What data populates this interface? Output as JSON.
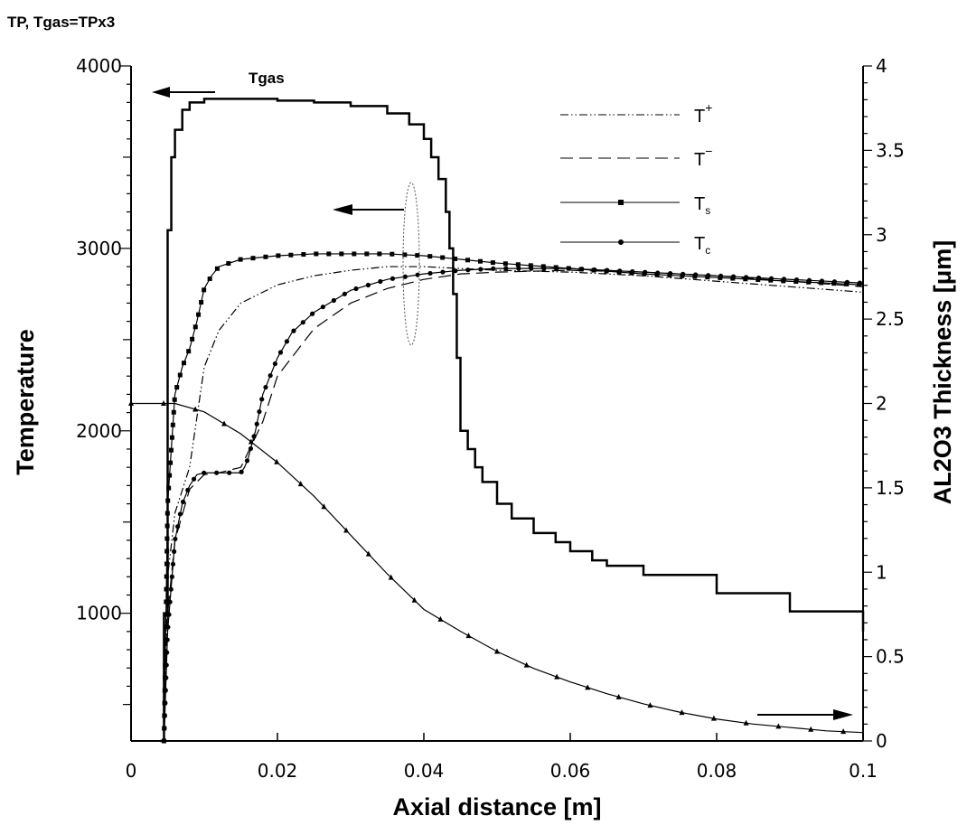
{
  "chart_data": {
    "type": "line",
    "title": "TP, Tgas=TPx3",
    "xlabel": "Axial distance [m]",
    "ylabel": "Temperature",
    "y2label": "AL2O3 Thickness [μm]",
    "xlim": [
      0,
      0.1
    ],
    "ylim": [
      300,
      4000
    ],
    "y2lim": [
      0,
      4
    ],
    "x_ticks": [
      "0",
      "0.02",
      "0.04",
      "0.06",
      "0.08",
      "0.1"
    ],
    "y_ticks": [
      "1000",
      "2000",
      "3000",
      "4000"
    ],
    "y2_ticks": [
      "0",
      "0.5",
      "1",
      "1.5",
      "2",
      "2.5",
      "3",
      "3.5",
      "4"
    ],
    "grid": false,
    "legend_position": "top-right",
    "curve_label": "Tgas",
    "legend": [
      {
        "label": "T",
        "sup": "+",
        "style": "dash-dot-dot"
      },
      {
        "label": "T",
        "sup": "−",
        "style": "dashed"
      },
      {
        "label": "T",
        "sub": "s",
        "style": "line-square"
      },
      {
        "label": "T",
        "sub": "c",
        "style": "line-circle"
      }
    ],
    "series": [
      {
        "name": "Tgas",
        "axis": "left",
        "style": "step",
        "x": [
          0.004,
          0.0045,
          0.005,
          0.0055,
          0.006,
          0.007,
          0.008,
          0.01,
          0.015,
          0.02,
          0.025,
          0.03,
          0.035,
          0.038,
          0.04,
          0.041,
          0.042,
          0.043,
          0.0435,
          0.044,
          0.0445,
          0.045,
          0.046,
          0.047,
          0.048,
          0.05,
          0.052,
          0.055,
          0.058,
          0.06,
          0.063,
          0.065,
          0.07,
          0.08,
          0.09,
          0.1
        ],
        "y": [
          300,
          1000,
          3100,
          3500,
          3650,
          3760,
          3800,
          3820,
          3820,
          3810,
          3800,
          3780,
          3740,
          3680,
          3600,
          3500,
          3380,
          3200,
          3000,
          2750,
          2400,
          2000,
          1900,
          1800,
          1720,
          1600,
          1520,
          1440,
          1390,
          1340,
          1290,
          1260,
          1210,
          1110,
          1010,
          900
        ]
      },
      {
        "name": "T+",
        "axis": "left",
        "style": "dash-dot-dot",
        "x": [
          0.0045,
          0.005,
          0.006,
          0.008,
          0.01,
          0.012,
          0.015,
          0.02,
          0.025,
          0.03,
          0.035,
          0.04,
          0.045,
          0.05,
          0.06,
          0.07,
          0.08,
          0.09,
          0.1
        ],
        "y": [
          300,
          1200,
          1550,
          1800,
          2350,
          2550,
          2700,
          2800,
          2850,
          2880,
          2900,
          2900,
          2890,
          2880,
          2870,
          2850,
          2820,
          2790,
          2760
        ]
      },
      {
        "name": "T−",
        "axis": "left",
        "style": "dashed",
        "x": [
          0.0045,
          0.005,
          0.006,
          0.008,
          0.01,
          0.012,
          0.015,
          0.018,
          0.02,
          0.025,
          0.03,
          0.035,
          0.04,
          0.045,
          0.05,
          0.06,
          0.07,
          0.08,
          0.09,
          0.1
        ],
        "y": [
          300,
          1000,
          1400,
          1680,
          1760,
          1770,
          1800,
          2050,
          2300,
          2560,
          2700,
          2780,
          2830,
          2860,
          2870,
          2880,
          2870,
          2850,
          2820,
          2790
        ]
      },
      {
        "name": "Ts",
        "axis": "left",
        "style": "line-square",
        "x": [
          0.0045,
          0.005,
          0.0055,
          0.006,
          0.007,
          0.008,
          0.009,
          0.01,
          0.011,
          0.012,
          0.015,
          0.02,
          0.025,
          0.03,
          0.035,
          0.04,
          0.045,
          0.05,
          0.06,
          0.07,
          0.08,
          0.09,
          0.1
        ],
        "y": [
          300,
          1600,
          1900,
          2200,
          2350,
          2450,
          2600,
          2780,
          2850,
          2900,
          2940,
          2960,
          2970,
          2970,
          2970,
          2960,
          2940,
          2920,
          2890,
          2860,
          2840,
          2820,
          2800
        ]
      },
      {
        "name": "Tc",
        "axis": "left",
        "style": "line-circle",
        "x": [
          0.0045,
          0.005,
          0.006,
          0.007,
          0.008,
          0.009,
          0.01,
          0.012,
          0.015,
          0.0155,
          0.016,
          0.017,
          0.018,
          0.02,
          0.022,
          0.025,
          0.03,
          0.035,
          0.04,
          0.045,
          0.05,
          0.06,
          0.07,
          0.08,
          0.09,
          0.1
        ],
        "y": [
          300,
          900,
          1400,
          1600,
          1700,
          1760,
          1770,
          1770,
          1770,
          1800,
          1850,
          2000,
          2200,
          2400,
          2540,
          2650,
          2770,
          2830,
          2860,
          2880,
          2890,
          2890,
          2870,
          2850,
          2830,
          2810
        ]
      },
      {
        "name": "AL2O3 Thickness",
        "axis": "right",
        "style": "line-triangle",
        "x": [
          0.0,
          0.006,
          0.01,
          0.015,
          0.02,
          0.025,
          0.03,
          0.035,
          0.04,
          0.045,
          0.05,
          0.055,
          0.06,
          0.065,
          0.07,
          0.075,
          0.08,
          0.085,
          0.09,
          0.095,
          0.1
        ],
        "y": [
          2.0,
          2.0,
          1.95,
          1.82,
          1.65,
          1.45,
          1.22,
          0.99,
          0.78,
          0.65,
          0.53,
          0.43,
          0.35,
          0.28,
          0.22,
          0.17,
          0.13,
          0.1,
          0.08,
          0.06,
          0.05
        ]
      }
    ]
  }
}
